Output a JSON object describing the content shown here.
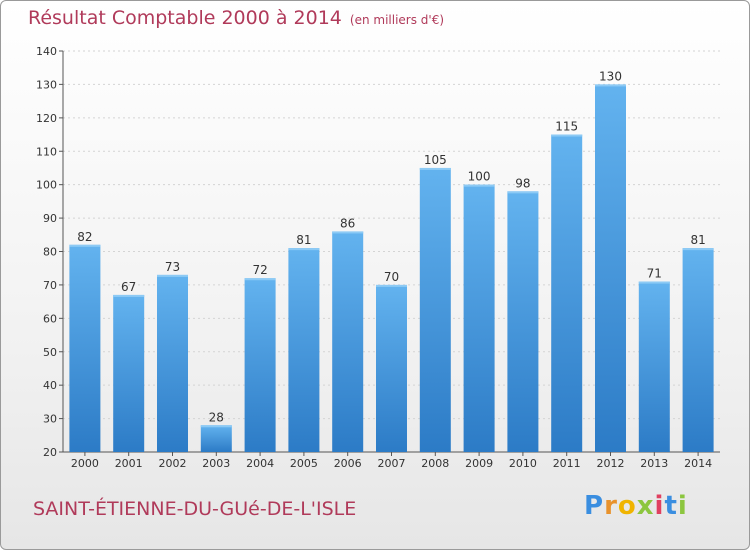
{
  "header": {
    "title": "Résultat Comptable 2000 à 2014",
    "subtitle": "(en milliers d'€)"
  },
  "footer": {
    "location": "SAINT-ÉTIENNE-DU-GUé-DE-L'ISLE",
    "logo_letters": [
      "P",
      "r",
      "o",
      "x",
      "i",
      "t",
      "i"
    ],
    "logo_colors": [
      "#3a8ee0",
      "#e8922c",
      "#f0b400",
      "#8cc63f",
      "#e04060",
      "#3a8ee0",
      "#8cc63f"
    ]
  },
  "colors": {
    "bar": "#3f95de",
    "bar_light": "#63b3ef",
    "bar_dark": "#2c7bc6",
    "accent": "#b03a5a"
  },
  "chart_data": {
    "type": "bar",
    "title": "Résultat Comptable 2000 à 2014",
    "subtitle": "(en milliers d'€)",
    "categories": [
      "2000",
      "2001",
      "2002",
      "2003",
      "2004",
      "2005",
      "2006",
      "2007",
      "2008",
      "2009",
      "2010",
      "2011",
      "2012",
      "2013",
      "2014"
    ],
    "values": [
      82,
      67,
      73,
      28,
      72,
      81,
      86,
      70,
      105,
      100,
      98,
      115,
      130,
      71,
      81
    ],
    "ylim": [
      20,
      140
    ],
    "yticks": [
      20,
      30,
      40,
      50,
      60,
      70,
      80,
      90,
      100,
      110,
      120,
      130,
      140
    ],
    "grid": true,
    "xlabel": "",
    "ylabel": ""
  }
}
